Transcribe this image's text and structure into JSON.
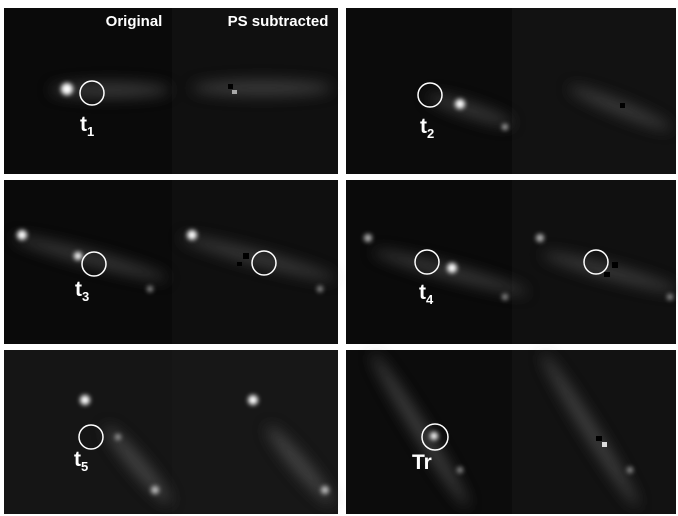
{
  "header": {
    "original": "Original",
    "ps_subtracted": "PS subtracted"
  },
  "panels": [
    {
      "label": "t",
      "subscript": "1"
    },
    {
      "label": "t",
      "subscript": "2"
    },
    {
      "label": "t",
      "subscript": "3"
    },
    {
      "label": "t",
      "subscript": "4"
    },
    {
      "label": "t",
      "subscript": "5"
    },
    {
      "label": "Tr"
    }
  ]
}
